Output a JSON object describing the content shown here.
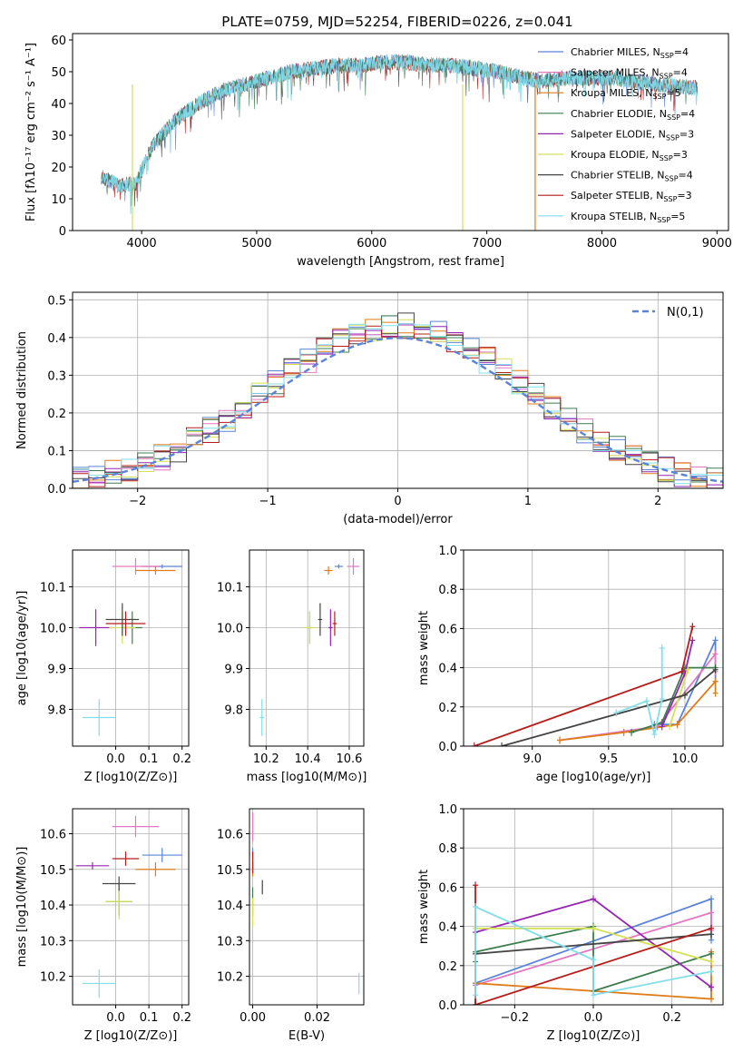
{
  "figure": {
    "title": "PLATE=0759, MJD=52254, FIBERID=0226, z=0.041"
  },
  "legend_entries": [
    {
      "label": "Chabrier MILES, N",
      "sub": "SSP",
      "suffix": "=4",
      "color": "#5b84d8"
    },
    {
      "label": "Salpeter MILES, N",
      "sub": "SSP",
      "suffix": "=4",
      "color": "#e377c2"
    },
    {
      "label": "Kroupa MILES, N",
      "sub": "SSP",
      "suffix": "=5",
      "color": "#e07b1a"
    },
    {
      "label": "Chabrier ELODIE, N",
      "sub": "SSP",
      "suffix": "=4",
      "color": "#3d7d4e"
    },
    {
      "label": "Salpeter ELODIE, N",
      "sub": "SSP",
      "suffix": "=3",
      "color": "#9526b3"
    },
    {
      "label": "Kroupa ELODIE, N",
      "sub": "SSP",
      "suffix": "=3",
      "color": "#d4e157"
    },
    {
      "label": "Chabrier STELIB, N",
      "sub": "SSP",
      "suffix": "=4",
      "color": "#444444"
    },
    {
      "label": "Salpeter STELIB, N",
      "sub": "SSP",
      "suffix": "=3",
      "color": "#b71c1c"
    },
    {
      "label": "Kroupa STELIB, N",
      "sub": "SSP",
      "suffix": "=5",
      "color": "#80deea"
    }
  ],
  "chart_data": [
    {
      "id": "spectrum",
      "type": "line",
      "xlabel": "wavelength [Angstrom, rest frame]",
      "ylabel": "Flux [fλ10⁻¹⁷ erg cm⁻² s⁻¹ A⁻¹]",
      "xlim": [
        3400,
        9100
      ],
      "ylim": [
        0,
        62
      ],
      "xticks": [
        4000,
        5000,
        6000,
        7000,
        8000,
        9000
      ],
      "yticks": [
        0,
        10,
        20,
        30,
        40,
        50,
        60
      ],
      "grid": false,
      "continuum": {
        "x": [
          3650,
          3800,
          3950,
          4100,
          4300,
          4500,
          4700,
          4900,
          5100,
          5300,
          5500,
          5700,
          5900,
          6100,
          6300,
          6500,
          6700,
          6900,
          7100,
          7300,
          7500,
          7700,
          7900,
          8100,
          8300,
          8500,
          8800
        ],
        "y": [
          17,
          14,
          15,
          27,
          35,
          40,
          44,
          46,
          48,
          50,
          51,
          52,
          52,
          53,
          53,
          52,
          52,
          51,
          50,
          48,
          47,
          48,
          48,
          48,
          47,
          46,
          45
        ]
      },
      "dropouts": [
        {
          "x": 3920,
          "color": "#d4e157"
        },
        {
          "x": 6790,
          "color": "#d4e157"
        },
        {
          "x": 7420,
          "color": "#e07b1a"
        }
      ]
    },
    {
      "id": "residuals",
      "type": "step",
      "xlabel": "(data-model)/error",
      "ylabel": "Normed distribution",
      "xlim": [
        -2.5,
        2.5
      ],
      "ylim": [
        0,
        0.52
      ],
      "xticks": [
        -2,
        -1,
        0,
        1,
        2
      ],
      "yticks": [
        0,
        0.1,
        0.2,
        0.3,
        0.4,
        0.5
      ],
      "grid": true,
      "legend": "N(0,1)",
      "legend_position": "top-right",
      "reference": "normal"
    },
    {
      "id": "age_vs_Z",
      "type": "scatter",
      "xlabel": "Z [log10(Z/Z⊙)]",
      "ylabel": "age [log10(age/yr)]",
      "xlim": [
        -0.13,
        0.22
      ],
      "ylim": [
        9.71,
        10.19
      ],
      "xticks": [
        0.0,
        0.1,
        0.2
      ],
      "yticks": [
        9.8,
        9.9,
        10.0,
        10.1
      ],
      "grid": true,
      "points": [
        {
          "series": 0,
          "x": 0.14,
          "y": 10.15,
          "xerr": 0.06,
          "yerr": 0.005
        },
        {
          "series": 1,
          "x": 0.06,
          "y": 10.15,
          "xerr": 0.07,
          "yerr": 0.02
        },
        {
          "series": 2,
          "x": 0.12,
          "y": 10.14,
          "xerr": 0.06,
          "yerr": 0.01
        },
        {
          "series": 3,
          "x": 0.05,
          "y": 10.0,
          "xerr": 0.03,
          "yerr": 0.04
        },
        {
          "series": 4,
          "x": -0.06,
          "y": 10.0,
          "xerr": 0.05,
          "yerr": 0.045
        },
        {
          "series": 5,
          "x": 0.02,
          "y": 10.0,
          "xerr": 0.04,
          "yerr": 0.04
        },
        {
          "series": 6,
          "x": 0.02,
          "y": 10.02,
          "xerr": 0.05,
          "yerr": 0.04
        },
        {
          "series": 7,
          "x": 0.03,
          "y": 10.01,
          "xerr": 0.06,
          "yerr": 0.03
        },
        {
          "series": 8,
          "x": -0.05,
          "y": 9.78,
          "xerr": 0.05,
          "yerr": 0.045
        }
      ]
    },
    {
      "id": "age_vs_mass",
      "type": "scatter",
      "xlabel": "mass [log10(M/M⊙)]",
      "ylabel": "",
      "xlim": [
        10.12,
        10.67
      ],
      "ylim": [
        9.71,
        10.19
      ],
      "xticks": [
        10.2,
        10.4,
        10.6
      ],
      "yticks": [
        9.8,
        9.9,
        10.0,
        10.1
      ],
      "grid": true,
      "points": [
        {
          "series": 0,
          "x": 10.55,
          "y": 10.15,
          "xerr": 0.02,
          "yerr": 0.005
        },
        {
          "series": 1,
          "x": 10.62,
          "y": 10.15,
          "xerr": 0.03,
          "yerr": 0.02
        },
        {
          "series": 2,
          "x": 10.5,
          "y": 10.14,
          "xerr": 0.02,
          "yerr": 0.01
        },
        {
          "series": 3,
          "x": 10.41,
          "y": 10.0,
          "xerr": 0.01,
          "yerr": 0.04
        },
        {
          "series": 4,
          "x": 10.51,
          "y": 10.0,
          "xerr": 0.01,
          "yerr": 0.045
        },
        {
          "series": 5,
          "x": 10.41,
          "y": 10.0,
          "xerr": 0.03,
          "yerr": 0.04
        },
        {
          "series": 6,
          "x": 10.46,
          "y": 10.02,
          "xerr": 0.01,
          "yerr": 0.04
        },
        {
          "series": 7,
          "x": 10.53,
          "y": 10.01,
          "xerr": 0.01,
          "yerr": 0.03
        },
        {
          "series": 8,
          "x": 10.18,
          "y": 9.78,
          "xerr": 0.01,
          "yerr": 0.045
        }
      ]
    },
    {
      "id": "weight_vs_age",
      "type": "line",
      "xlabel": "age [log10(age/yr)]",
      "ylabel": "mass weight",
      "xlim": [
        8.55,
        10.25
      ],
      "ylim": [
        0,
        1.0
      ],
      "xticks": [
        9.0,
        9.5,
        10.0
      ],
      "yticks": [
        0.0,
        0.2,
        0.4,
        0.6,
        0.8,
        1.0
      ],
      "grid": true,
      "series": [
        {
          "x": [
            9.8,
            9.95,
            10.2,
            10.2
          ],
          "y": [
            0.11,
            0.11,
            0.54,
            0.33
          ]
        },
        {
          "x": [
            9.18,
            9.82,
            10.2,
            10.2
          ],
          "y": [
            0.03,
            0.1,
            0.47,
            0.38
          ]
        },
        {
          "x": [
            9.18,
            9.6,
            9.95,
            10.2,
            10.2
          ],
          "y": [
            0.03,
            0.07,
            0.11,
            0.33,
            0.27
          ]
        },
        {
          "x": [
            9.65,
            9.85,
            10.0,
            10.2
          ],
          "y": [
            0.07,
            0.12,
            0.4,
            0.4
          ]
        },
        {
          "x": [
            9.85,
            10.0,
            10.05
          ],
          "y": [
            0.1,
            0.37,
            0.54
          ]
        },
        {
          "x": [
            9.9,
            10.02
          ],
          "y": [
            0.1,
            0.39
          ]
        },
        {
          "x": [
            8.8,
            10.0,
            10.2
          ],
          "y": [
            0.0,
            0.26,
            0.39
          ]
        },
        {
          "x": [
            8.62,
            9.98,
            10.05
          ],
          "y": [
            0.0,
            0.38,
            0.61
          ]
        },
        {
          "x": [
            9.55,
            9.75,
            9.8,
            9.85,
            9.85
          ],
          "y": [
            0.17,
            0.23,
            0.06,
            0.24,
            0.5
          ]
        }
      ]
    },
    {
      "id": "mass_vs_Z",
      "type": "scatter",
      "xlabel": "Z [log10(Z/Z⊙)]",
      "ylabel": "mass [log10(M/M⊙)]",
      "xlim": [
        -0.13,
        0.22
      ],
      "ylim": [
        10.12,
        10.67
      ],
      "xticks": [
        0.0,
        0.1,
        0.2
      ],
      "yticks": [
        10.2,
        10.3,
        10.4,
        10.5,
        10.6
      ],
      "grid": true,
      "points": [
        {
          "series": 0,
          "x": 0.14,
          "y": 10.54,
          "xerr": 0.06,
          "yerr": 0.02
        },
        {
          "series": 1,
          "x": 0.06,
          "y": 10.62,
          "xerr": 0.07,
          "yerr": 0.03
        },
        {
          "series": 2,
          "x": 0.12,
          "y": 10.5,
          "xerr": 0.06,
          "yerr": 0.02
        },
        {
          "series": 3,
          "x": 0.01,
          "y": 10.41,
          "xerr": 0.04,
          "yerr": 0.04
        },
        {
          "series": 4,
          "x": -0.07,
          "y": 10.51,
          "xerr": 0.05,
          "yerr": 0.01
        },
        {
          "series": 5,
          "x": 0.01,
          "y": 10.41,
          "xerr": 0.04,
          "yerr": 0.05
        },
        {
          "series": 6,
          "x": 0.01,
          "y": 10.46,
          "xerr": 0.05,
          "yerr": 0.02
        },
        {
          "series": 7,
          "x": 0.03,
          "y": 10.53,
          "xerr": 0.04,
          "yerr": 0.02
        },
        {
          "series": 8,
          "x": -0.05,
          "y": 10.18,
          "xerr": 0.05,
          "yerr": 0.04
        }
      ]
    },
    {
      "id": "mass_vs_ebv",
      "type": "scatter",
      "xlabel": "E(B-V)",
      "ylabel": "",
      "xlim": [
        -0.001,
        0.0345
      ],
      "ylim": [
        10.12,
        10.67
      ],
      "xticks": [
        0.0,
        0.02
      ],
      "yticks": [
        10.2,
        10.3,
        10.4,
        10.5,
        10.6
      ],
      "grid": true,
      "points": [
        {
          "series": 0,
          "x": 0.0,
          "y": 10.54,
          "xerr": 0.0,
          "yerr": 0.02
        },
        {
          "series": 1,
          "x": 0.0,
          "y": 10.62,
          "xerr": 0.0,
          "yerr": 0.04
        },
        {
          "series": 2,
          "x": 0.0,
          "y": 10.5,
          "xerr": 0.0,
          "yerr": 0.02
        },
        {
          "series": 3,
          "x": 0.0,
          "y": 10.41,
          "xerr": 0.0,
          "yerr": 0.04
        },
        {
          "series": 4,
          "x": 0.0,
          "y": 10.51,
          "xerr": 0.0,
          "yerr": 0.01
        },
        {
          "series": 5,
          "x": 0.0,
          "y": 10.38,
          "xerr": 0.0,
          "yerr": 0.04
        },
        {
          "series": 6,
          "x": 0.003,
          "y": 10.45,
          "xerr": 0.0,
          "yerr": 0.02
        },
        {
          "series": 7,
          "x": 0.0,
          "y": 10.52,
          "xerr": 0.0,
          "yerr": 0.03
        },
        {
          "series": 8,
          "x": 0.033,
          "y": 10.18,
          "xerr": 0.0,
          "yerr": 0.03
        }
      ]
    },
    {
      "id": "weight_vs_Z",
      "type": "line",
      "xlabel": "Z [log10(Z/Z⊙)]",
      "ylabel": "mass weight",
      "xlim": [
        -0.33,
        0.33
      ],
      "ylim": [
        0,
        1.0
      ],
      "xticks": [
        -0.2,
        0.0,
        0.2
      ],
      "yticks": [
        0.0,
        0.2,
        0.4,
        0.6,
        0.8,
        1.0
      ],
      "grid": true,
      "series": [
        {
          "x": [
            -0.3,
            0.3,
            0.3
          ],
          "y": [
            0.11,
            0.54,
            0.33
          ]
        },
        {
          "x": [
            -0.3,
            0.3,
            0.3
          ],
          "y": [
            0.1,
            0.47,
            0.38
          ]
        },
        {
          "x": [
            -0.3,
            0.3,
            0.3
          ],
          "y": [
            0.11,
            0.03,
            0.27
          ]
        },
        {
          "x": [
            -0.3,
            -0.3,
            0.0,
            0.0,
            0.3
          ],
          "y": [
            0.22,
            0.27,
            0.4,
            0.07,
            0.26
          ]
        },
        {
          "x": [
            -0.3,
            0.0,
            0.3,
            0.3
          ],
          "y": [
            0.37,
            0.54,
            0.09,
            0.09
          ]
        },
        {
          "x": [
            -0.3,
            0.0,
            0.3
          ],
          "y": [
            0.39,
            0.39,
            0.22
          ]
        },
        {
          "x": [
            -0.3,
            -0.3,
            0.3
          ],
          "y": [
            0.0,
            0.26,
            0.36
          ]
        },
        {
          "x": [
            -0.3,
            -0.3,
            0.3
          ],
          "y": [
            0.61,
            0.0,
            0.39
          ]
        },
        {
          "x": [
            -0.3,
            -0.3,
            0.0,
            0.0,
            0.3
          ],
          "y": [
            0.05,
            0.5,
            0.23,
            0.05,
            0.17
          ]
        }
      ]
    }
  ]
}
